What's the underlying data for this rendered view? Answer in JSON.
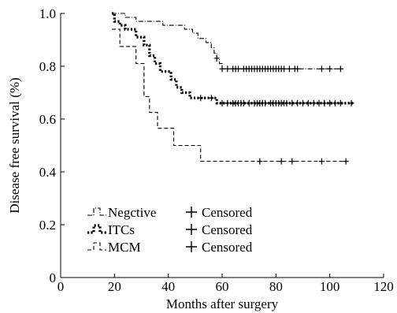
{
  "chart_data": {
    "type": "line",
    "title": "",
    "xlabel": "Months after surgery",
    "ylabel": "Disease free survival (%)",
    "xlim": [
      0,
      120
    ],
    "ylim": [
      0,
      1.0
    ],
    "x_ticks": [
      0,
      20,
      40,
      60,
      80,
      100,
      120
    ],
    "y_ticks": [
      0,
      0.2,
      0.4,
      0.6,
      0.8,
      1.0
    ],
    "x_tick_labels": [
      "0",
      "20",
      "40",
      "60",
      "80",
      "100",
      "120"
    ],
    "y_tick_labels": [
      "0",
      "0.2",
      "0.4",
      "0.6",
      "0.8",
      "1.0"
    ],
    "grid": false,
    "legend_position": "bottom-left",
    "series": [
      {
        "name": "Negctive",
        "censor_label": "Censored",
        "style": "dash-dot",
        "points": [
          [
            19,
            1.0
          ],
          [
            24,
            1.0
          ],
          [
            24,
            0.985
          ],
          [
            28,
            0.985
          ],
          [
            28,
            0.97
          ],
          [
            38,
            0.97
          ],
          [
            38,
            0.955
          ],
          [
            46,
            0.955
          ],
          [
            46,
            0.94
          ],
          [
            49,
            0.94
          ],
          [
            49,
            0.925
          ],
          [
            51,
            0.925
          ],
          [
            51,
            0.905
          ],
          [
            54,
            0.905
          ],
          [
            54,
            0.89
          ],
          [
            56,
            0.89
          ],
          [
            56,
            0.87
          ],
          [
            57,
            0.87
          ],
          [
            57,
            0.85
          ],
          [
            58,
            0.85
          ],
          [
            58,
            0.83
          ],
          [
            59,
            0.83
          ],
          [
            59,
            0.81
          ],
          [
            60,
            0.81
          ],
          [
            60,
            0.79
          ],
          [
            105,
            0.79
          ]
        ],
        "censored": [
          58,
          60,
          62,
          64,
          65,
          66,
          68,
          69,
          70,
          71,
          72,
          73,
          74,
          75,
          76,
          77,
          78,
          79,
          80,
          81,
          82,
          83,
          85,
          87,
          88,
          97,
          100,
          104
        ]
      },
      {
        "name": "ITCs",
        "censor_label": "Censored",
        "style": "dotted",
        "points": [
          [
            19,
            1.0
          ],
          [
            20,
            1.0
          ],
          [
            20,
            0.97
          ],
          [
            22,
            0.97
          ],
          [
            22,
            0.955
          ],
          [
            24,
            0.955
          ],
          [
            24,
            0.94
          ],
          [
            28,
            0.94
          ],
          [
            28,
            0.91
          ],
          [
            31,
            0.91
          ],
          [
            31,
            0.88
          ],
          [
            33,
            0.88
          ],
          [
            33,
            0.84
          ],
          [
            35,
            0.84
          ],
          [
            35,
            0.81
          ],
          [
            37,
            0.81
          ],
          [
            37,
            0.78
          ],
          [
            41,
            0.78
          ],
          [
            41,
            0.75
          ],
          [
            43,
            0.75
          ],
          [
            43,
            0.72
          ],
          [
            45,
            0.72
          ],
          [
            45,
            0.7
          ],
          [
            48,
            0.7
          ],
          [
            48,
            0.68
          ],
          [
            58,
            0.68
          ],
          [
            58,
            0.66
          ],
          [
            109,
            0.66
          ]
        ],
        "censored": [
          52,
          56,
          60,
          62,
          64,
          65,
          66,
          67,
          68,
          70,
          72,
          73,
          74,
          75,
          76,
          78,
          79,
          80,
          81,
          82,
          83,
          84,
          86,
          88,
          90,
          92,
          94,
          96,
          98,
          100,
          102,
          104,
          108
        ]
      },
      {
        "name": "MCM",
        "censor_label": "Censored",
        "style": "dashed",
        "points": [
          [
            19,
            0.94
          ],
          [
            22,
            0.94
          ],
          [
            22,
            0.875
          ],
          [
            28,
            0.875
          ],
          [
            28,
            0.81
          ],
          [
            31,
            0.81
          ],
          [
            31,
            0.685
          ],
          [
            33,
            0.685
          ],
          [
            33,
            0.625
          ],
          [
            36,
            0.625
          ],
          [
            36,
            0.565
          ],
          [
            42,
            0.565
          ],
          [
            42,
            0.5
          ],
          [
            52,
            0.5
          ],
          [
            52,
            0.44
          ],
          [
            106,
            0.44
          ]
        ],
        "censored": [
          74,
          82,
          86,
          97,
          106
        ]
      }
    ]
  }
}
